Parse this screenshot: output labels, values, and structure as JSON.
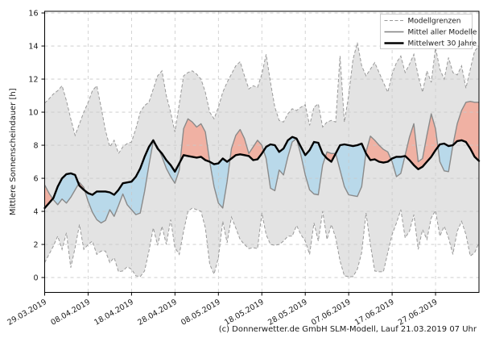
{
  "y_axis": {
    "label": "Mittlere Sonnenscheindauer [h]",
    "ticks": [
      0,
      2,
      4,
      6,
      8,
      10,
      12,
      14,
      16
    ]
  },
  "x_axis": {
    "tick_labels": [
      "29.03.2019",
      "08.04.2019",
      "18.04.2019",
      "28.04.2019",
      "08.05.2019",
      "18.05.2019",
      "28.05.2019",
      "07.06.2019",
      "17.06.2019",
      "27.06.2019"
    ],
    "tick_positions_days": [
      0,
      10,
      20,
      30,
      40,
      50,
      60,
      70,
      80,
      90
    ]
  },
  "legend": {
    "entries": [
      {
        "label": "Modellgrenzen",
        "line_style": "dashed",
        "line_color": "#999999",
        "line_width": 1
      },
      {
        "label": "Mittel aller Modelle",
        "line_style": "solid",
        "line_color": "#808080",
        "line_width": 1.5
      },
      {
        "label": "Mittelwert 30 Jahre",
        "line_style": "solid",
        "line_color": "#000000",
        "line_width": 2.5
      }
    ],
    "position": "upper right"
  },
  "footer": {
    "credit": "(c) Donnerwetter.de GmbH SLM-Modell, Lauf 21.03.2019 07 Uhr"
  },
  "colors": {
    "band_fill": "#e3e3e3",
    "bound_line": "#999999",
    "model_mean_line": "#8a8a8a",
    "climate_line": "#000000",
    "fill_above_climate": "#f0b1a3",
    "fill_below_climate": "#b9d9ea",
    "grid": "#c9c9c9",
    "frame": "#000000"
  },
  "chart_data": {
    "type": "line",
    "title": "",
    "xlabel": "",
    "ylabel": "Mittlere Sonnenscheindauer [h]",
    "x_unit": "days since 29.03.2019, one value per day",
    "x_range": [
      0,
      100
    ],
    "ylim": [
      -0.9,
      16.1
    ],
    "y_ticks": [
      0,
      2,
      4,
      6,
      8,
      10,
      12,
      14,
      16
    ],
    "grid": true,
    "legend_position": "upper right",
    "x_tick_positions": [
      0,
      10,
      20,
      30,
      40,
      50,
      60,
      70,
      80,
      90
    ],
    "x_tick_labels": [
      "29.03.2019",
      "08.04.2019",
      "18.04.2019",
      "28.04.2019",
      "08.05.2019",
      "18.05.2019",
      "28.05.2019",
      "07.06.2019",
      "17.06.2019",
      "27.06.2019"
    ],
    "series": [
      {
        "name": "Modellgrenzen",
        "role": "upper_bound",
        "style": "dashed-gray",
        "values": [
          10.55,
          10.8,
          11.1,
          11.3,
          11.6,
          10.7,
          9.6,
          8.6,
          9.3,
          10.0,
          10.6,
          11.3,
          11.6,
          10.3,
          8.9,
          7.9,
          8.3,
          7.5,
          7.9,
          8.1,
          8.2,
          9.0,
          10.0,
          10.4,
          10.6,
          11.4,
          12.2,
          12.5,
          11.0,
          10.0,
          8.8,
          10.5,
          12.2,
          12.4,
          12.5,
          12.3,
          12.0,
          11.2,
          10.0,
          9.6,
          10.3,
          11.2,
          11.8,
          12.3,
          12.8,
          13.05,
          12.2,
          11.4,
          11.6,
          11.5,
          12.3,
          13.5,
          11.8,
          10.3,
          9.5,
          9.4,
          9.9,
          10.2,
          10.1,
          10.3,
          10.45,
          9.2,
          10.3,
          10.5,
          9.1,
          9.4,
          9.5,
          9.4,
          13.4,
          9.4,
          11.0,
          13.2,
          14.2,
          12.8,
          12.2,
          12.6,
          13.0,
          12.4,
          11.8,
          11.2,
          12.3,
          13.0,
          13.4,
          12.4,
          12.9,
          13.5,
          12.2,
          11.2,
          12.5,
          11.8,
          13.9,
          12.6,
          12.0,
          13.3,
          12.4,
          12.25,
          12.8,
          11.45,
          12.6,
          13.7,
          14.0
        ]
      },
      {
        "name": "Modellgrenzen",
        "role": "lower_bound",
        "style": "dashed-gray",
        "values": [
          0.9,
          1.4,
          1.9,
          2.5,
          1.7,
          2.7,
          0.6,
          1.8,
          3.2,
          1.7,
          2.0,
          2.2,
          1.4,
          1.6,
          1.6,
          0.9,
          1.2,
          0.35,
          0.4,
          0.65,
          0.5,
          0.1,
          0.05,
          0.4,
          1.6,
          3.0,
          1.95,
          3.1,
          2.0,
          3.5,
          1.8,
          1.4,
          2.8,
          4.0,
          4.2,
          4.1,
          4.0,
          3.0,
          0.8,
          0.2,
          1.2,
          3.4,
          2.1,
          3.65,
          3.0,
          2.3,
          2.0,
          1.75,
          1.8,
          1.75,
          3.9,
          2.6,
          2.0,
          1.95,
          2.0,
          2.2,
          2.5,
          2.5,
          3.15,
          2.6,
          2.2,
          1.4,
          3.3,
          2.2,
          4.0,
          2.3,
          3.2,
          2.4,
          1.0,
          0.1,
          0.05,
          0.05,
          0.5,
          1.5,
          3.9,
          2.0,
          0.4,
          0.35,
          0.35,
          1.5,
          2.6,
          3.3,
          4.1,
          2.4,
          2.8,
          3.8,
          1.7,
          2.9,
          2.3,
          3.6,
          4.05,
          2.5,
          3.1,
          2.4,
          1.4,
          2.8,
          3.4,
          2.6,
          1.3,
          1.5,
          2.1
        ]
      },
      {
        "name": "Mittel aller Modelle",
        "role": "model_mean",
        "style": "solid-gray",
        "values": [
          5.6,
          5.1,
          4.7,
          4.4,
          4.75,
          4.5,
          4.85,
          5.3,
          5.75,
          5.45,
          4.6,
          3.95,
          3.5,
          3.3,
          3.45,
          4.1,
          3.7,
          4.35,
          5.05,
          4.4,
          4.1,
          3.8,
          3.9,
          5.2,
          6.8,
          8.25,
          7.9,
          7.3,
          6.6,
          6.1,
          5.7,
          6.5,
          9.0,
          9.6,
          9.4,
          9.1,
          9.3,
          8.8,
          7.0,
          5.5,
          4.5,
          4.2,
          5.8,
          7.8,
          8.6,
          8.95,
          8.4,
          7.5,
          7.9,
          8.3,
          8.0,
          7.2,
          5.4,
          5.25,
          6.5,
          6.2,
          7.3,
          8.2,
          8.4,
          7.4,
          6.2,
          5.3,
          5.05,
          5.0,
          6.8,
          7.6,
          7.5,
          7.5,
          6.5,
          5.5,
          5.0,
          4.95,
          4.9,
          5.5,
          7.6,
          8.55,
          8.3,
          8.0,
          7.75,
          7.6,
          7.0,
          6.1,
          6.3,
          7.4,
          8.5,
          9.3,
          7.0,
          7.2,
          8.6,
          9.9,
          9.0,
          7.0,
          6.45,
          6.4,
          8.0,
          9.3,
          10.1,
          10.6,
          10.65,
          10.6,
          10.6
        ]
      },
      {
        "name": "Mittelwert 30 Jahre",
        "role": "climate_mean_30y",
        "style": "solid-black-thick",
        "values": [
          4.2,
          4.5,
          4.8,
          5.5,
          6.0,
          6.25,
          6.3,
          6.2,
          5.55,
          5.3,
          5.1,
          5.0,
          5.2,
          5.2,
          5.2,
          5.15,
          5.0,
          5.3,
          5.7,
          5.75,
          5.8,
          6.1,
          6.6,
          7.3,
          7.9,
          8.3,
          7.8,
          7.5,
          7.1,
          6.8,
          6.4,
          6.9,
          7.4,
          7.35,
          7.3,
          7.25,
          7.3,
          7.1,
          7.0,
          6.85,
          6.9,
          7.2,
          7.0,
          7.2,
          7.4,
          7.45,
          7.4,
          7.35,
          7.1,
          7.15,
          7.5,
          7.9,
          8.05,
          8.0,
          7.6,
          7.8,
          8.3,
          8.5,
          8.4,
          7.9,
          7.4,
          7.7,
          8.2,
          8.15,
          7.5,
          7.2,
          7.0,
          7.5,
          8.0,
          8.05,
          8.0,
          7.95,
          8.0,
          8.1,
          7.5,
          7.1,
          7.15,
          7.0,
          6.95,
          7.0,
          7.2,
          7.3,
          7.3,
          7.35,
          7.1,
          6.8,
          6.55,
          6.7,
          7.0,
          7.3,
          7.7,
          8.05,
          8.1,
          7.95,
          8.0,
          8.25,
          8.3,
          8.2,
          7.8,
          7.3,
          7.05
        ]
      }
    ],
    "fills": [
      {
        "name": "Modellgrenzen-Band",
        "between": [
          "upper_bound",
          "lower_bound"
        ],
        "color": "#e3e3e3"
      },
      {
        "name": "Modellmittel über Klimamittel",
        "between": [
          "model_mean",
          "climate_mean_30y"
        ],
        "where": "model_mean > climate_mean_30y",
        "color": "#f0b1a3"
      },
      {
        "name": "Modellmittel unter Klimamittel",
        "between": [
          "model_mean",
          "climate_mean_30y"
        ],
        "where": "model_mean < climate_mean_30y",
        "color": "#b9d9ea"
      }
    ]
  }
}
